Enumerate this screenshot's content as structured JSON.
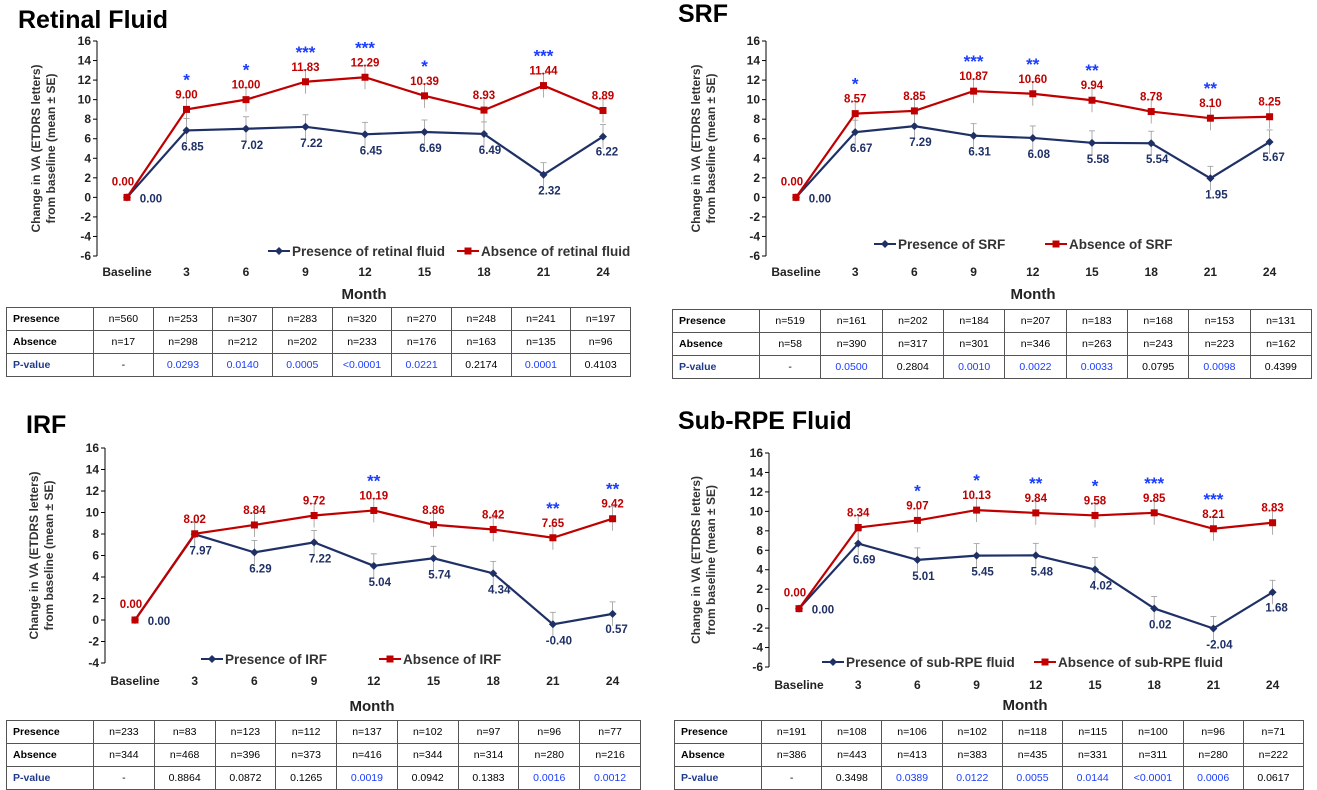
{
  "chart_data": [
    {
      "type": "line",
      "title": "Retinal Fluid",
      "xlabel": "Month",
      "ylabel_lines": [
        "Change in VA (ETDRS letters)",
        "from baseline (mean ± SE)"
      ],
      "categories": [
        "Baseline",
        "3",
        "6",
        "9",
        "12",
        "15",
        "18",
        "21",
        "24"
      ],
      "ylim": [
        -6,
        16
      ],
      "yticks": [
        "-6",
        "-4",
        "-2",
        "0",
        "2",
        "4",
        "6",
        "8",
        "10",
        "12",
        "14",
        "16"
      ],
      "legend_placement": "bottom-right",
      "series": [
        {
          "name": "Presence of retinal fluid",
          "color": "#1f3066",
          "marker": "diamond",
          "values": [
            0.0,
            6.85,
            7.02,
            7.22,
            6.45,
            6.69,
            6.49,
            2.32,
            6.22
          ],
          "labels": [
            "0.00",
            "6.85",
            "7.02",
            "7.22",
            "6.45",
            "6.69",
            "6.49",
            "2.32",
            "6.22"
          ]
        },
        {
          "name": "Absence of retinal fluid",
          "color": "#c00000",
          "marker": "square",
          "values": [
            0.0,
            9.0,
            10.0,
            11.83,
            12.29,
            10.39,
            8.93,
            11.44,
            8.89
          ],
          "labels": [
            "0.00",
            "9.00",
            "10.00",
            "11.83",
            "12.29",
            "10.39",
            "8.93",
            "11.44",
            "8.89"
          ]
        }
      ],
      "significance": [
        "",
        "*",
        "*",
        "***",
        "***",
        "*",
        "",
        "***",
        ""
      ],
      "table": {
        "rows": [
          {
            "label": "Presence",
            "values": [
              "n=560",
              "n=253",
              "n=307",
              "n=283",
              "n=320",
              "n=270",
              "n=248",
              "n=241",
              "n=197"
            ]
          },
          {
            "label": "Absence",
            "values": [
              "n=17",
              "n=298",
              "n=212",
              "n=202",
              "n=233",
              "n=176",
              "n=163",
              "n=135",
              "n=96"
            ]
          },
          {
            "label": "P-value",
            "values": [
              "-",
              "0.0293",
              "0.0140",
              "0.0005",
              "<0.0001",
              "0.0221",
              "0.2174",
              "0.0001",
              "0.4103"
            ],
            "significant": [
              false,
              true,
              true,
              true,
              true,
              true,
              false,
              true,
              false
            ]
          }
        ]
      }
    },
    {
      "type": "line",
      "title": "SRF",
      "xlabel": "Month",
      "ylabel_lines": [
        "Change in VA (ETDRS letters)",
        "from baseline (mean ± SE)"
      ],
      "categories": [
        "Baseline",
        "3",
        "6",
        "9",
        "12",
        "15",
        "18",
        "21",
        "24"
      ],
      "ylim": [
        -6,
        16
      ],
      "yticks": [
        "-6",
        "-4",
        "-2",
        "0",
        "2",
        "4",
        "6",
        "8",
        "10",
        "12",
        "14",
        "16"
      ],
      "legend_placement": "bottom-center",
      "series": [
        {
          "name": "Presence of SRF",
          "color": "#1f3066",
          "marker": "diamond",
          "values": [
            0.0,
            6.67,
            7.29,
            6.31,
            6.08,
            5.58,
            5.54,
            1.95,
            5.67
          ],
          "labels": [
            "0.00",
            "6.67",
            "7.29",
            "6.31",
            "6.08",
            "5.58",
            "5.54",
            "1.95",
            "5.67"
          ]
        },
        {
          "name": "Absence of SRF",
          "color": "#c00000",
          "marker": "square",
          "values": [
            0.0,
            8.57,
            8.85,
            10.87,
            10.6,
            9.94,
            8.78,
            8.1,
            8.25
          ],
          "labels": [
            "0.00",
            "8.57",
            "8.85",
            "10.87",
            "10.60",
            "9.94",
            "8.78",
            "8.10",
            "8.25"
          ]
        }
      ],
      "significance": [
        "",
        "*",
        "",
        "***",
        "**",
        "**",
        "",
        "**",
        ""
      ],
      "table": {
        "rows": [
          {
            "label": "Presence",
            "values": [
              "n=519",
              "n=161",
              "n=202",
              "n=184",
              "n=207",
              "n=183",
              "n=168",
              "n=153",
              "n=131"
            ]
          },
          {
            "label": "Absence",
            "values": [
              "n=58",
              "n=390",
              "n=317",
              "n=301",
              "n=346",
              "n=263",
              "n=243",
              "n=223",
              "n=162"
            ]
          },
          {
            "label": "P-value",
            "values": [
              "-",
              "0.0500",
              "0.2804",
              "0.0010",
              "0.0022",
              "0.0033",
              "0.0795",
              "0.0098",
              "0.4399"
            ],
            "significant": [
              false,
              true,
              false,
              true,
              true,
              true,
              false,
              true,
              false
            ]
          }
        ]
      }
    },
    {
      "type": "line",
      "title": "IRF",
      "xlabel": "Month",
      "ylabel_lines": [
        "Change in VA (ETDRS letters)",
        "from baseline (mean ± SE)"
      ],
      "categories": [
        "Baseline",
        "3",
        "6",
        "9",
        "12",
        "15",
        "18",
        "21",
        "24"
      ],
      "ylim": [
        -4,
        16
      ],
      "yticks": [
        "-4",
        "-2",
        "0",
        "2",
        "4",
        "6",
        "8",
        "10",
        "12",
        "14",
        "16"
      ],
      "legend_placement": "bottom-center",
      "series": [
        {
          "name": "Presence of IRF",
          "color": "#1f3066",
          "marker": "diamond",
          "values": [
            0.0,
            7.97,
            6.29,
            7.22,
            5.04,
            5.74,
            4.34,
            -0.4,
            0.57
          ],
          "labels": [
            "0.00",
            "7.97",
            "6.29",
            "7.22",
            "5.04",
            "5.74",
            "4.34",
            "-0.40",
            "0.57"
          ]
        },
        {
          "name": "Absence of IRF",
          "color": "#c00000",
          "marker": "square",
          "values": [
            0.0,
            8.02,
            8.84,
            9.72,
            10.19,
            8.86,
            8.42,
            7.65,
            9.42
          ],
          "labels": [
            "0.00",
            "8.02",
            "8.84",
            "9.72",
            "10.19",
            "8.86",
            "8.42",
            "7.65",
            "9.42"
          ]
        }
      ],
      "significance": [
        "",
        "",
        "",
        "",
        "**",
        "",
        "",
        "**",
        "**"
      ],
      "table": {
        "rows": [
          {
            "label": "Presence",
            "values": [
              "n=233",
              "n=83",
              "n=123",
              "n=112",
              "n=137",
              "n=102",
              "n=97",
              "n=96",
              "n=77"
            ]
          },
          {
            "label": "Absence",
            "values": [
              "n=344",
              "n=468",
              "n=396",
              "n=373",
              "n=416",
              "n=344",
              "n=314",
              "n=280",
              "n=216"
            ]
          },
          {
            "label": "P-value",
            "values": [
              "-",
              "0.8864",
              "0.0872",
              "0.1265",
              "0.0019",
              "0.0942",
              "0.1383",
              "0.0016",
              "0.0012"
            ],
            "significant": [
              false,
              false,
              false,
              false,
              true,
              false,
              false,
              true,
              true
            ]
          }
        ]
      }
    },
    {
      "type": "line",
      "title": "Sub-RPE Fluid",
      "xlabel": "Month",
      "ylabel_lines": [
        "Change in VA (ETDRS letters)",
        "from baseline (mean ± SE)"
      ],
      "categories": [
        "Baseline",
        "3",
        "6",
        "9",
        "12",
        "15",
        "18",
        "21",
        "24"
      ],
      "ylim": [
        -6,
        16
      ],
      "yticks": [
        "-6",
        "-4",
        "-2",
        "0",
        "2",
        "4",
        "6",
        "8",
        "10",
        "12",
        "14",
        "16"
      ],
      "legend_placement": "bottom-center",
      "series": [
        {
          "name": "Presence of sub-RPE fluid",
          "color": "#1f3066",
          "marker": "diamond",
          "values": [
            0.0,
            6.69,
            5.01,
            5.45,
            5.48,
            4.02,
            0.02,
            -2.04,
            1.68
          ],
          "labels": [
            "0.00",
            "6.69",
            "5.01",
            "5.45",
            "5.48",
            "4.02",
            "0.02",
            "-2.04",
            "1.68"
          ]
        },
        {
          "name": "Absence of sub-RPE fluid",
          "color": "#c00000",
          "marker": "square",
          "values": [
            0.0,
            8.34,
            9.07,
            10.13,
            9.84,
            9.58,
            9.85,
            8.21,
            8.83
          ],
          "labels": [
            "0.00",
            "8.34",
            "9.07",
            "10.13",
            "9.84",
            "9.58",
            "9.85",
            "8.21",
            "8.83"
          ]
        }
      ],
      "significance": [
        "",
        "",
        "*",
        "*",
        "**",
        "*",
        "***",
        "***",
        ""
      ],
      "table": {
        "rows": [
          {
            "label": "Presence",
            "values": [
              "n=191",
              "n=108",
              "n=106",
              "n=102",
              "n=118",
              "n=115",
              "n=100",
              "n=96",
              "n=71"
            ]
          },
          {
            "label": "Absence",
            "values": [
              "n=386",
              "n=443",
              "n=413",
              "n=383",
              "n=435",
              "n=331",
              "n=311",
              "n=280",
              "n=222"
            ]
          },
          {
            "label": "P-value",
            "values": [
              "-",
              "0.3498",
              "0.0389",
              "0.0122",
              "0.0055",
              "0.0144",
              "<0.0001",
              "0.0006",
              "0.0617"
            ],
            "significant": [
              false,
              false,
              true,
              true,
              true,
              true,
              true,
              true,
              false
            ]
          }
        ]
      }
    }
  ]
}
